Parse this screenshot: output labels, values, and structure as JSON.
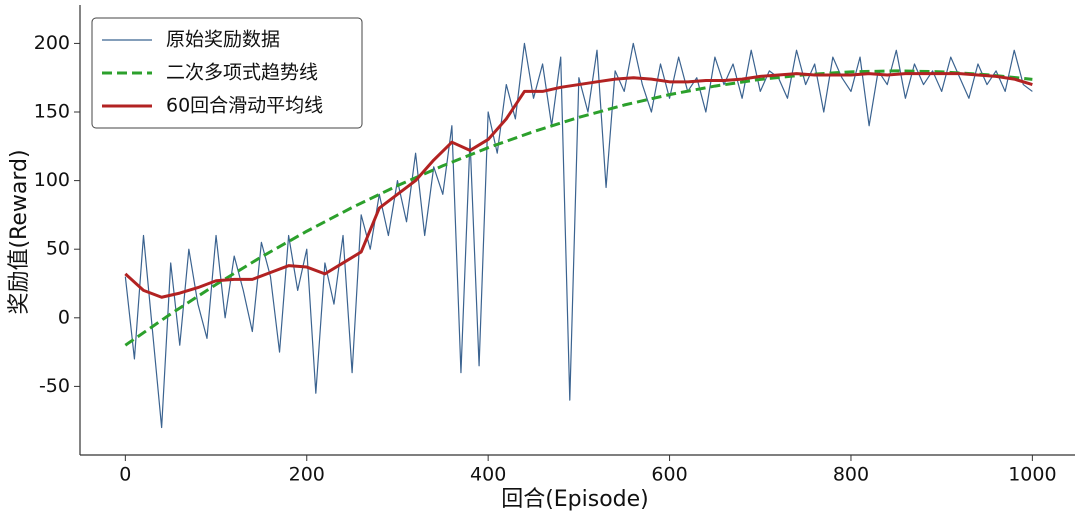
{
  "chart_data": {
    "type": "line",
    "xlabel": "回合(Episode)",
    "ylabel": "奖励值(Reward)",
    "xlim": [
      -50,
      1047
    ],
    "ylim": [
      -100,
      228
    ],
    "xticks": [
      0,
      200,
      400,
      600,
      800,
      1000
    ],
    "yticks": [
      -50,
      0,
      50,
      100,
      150,
      200
    ],
    "legend": "upper left",
    "series": [
      {
        "name": "原始奖励数据",
        "color": "#3b6390",
        "style": "solid",
        "width": 1.2,
        "x": [
          0,
          10,
          20,
          30,
          40,
          50,
          60,
          70,
          80,
          90,
          100,
          110,
          120,
          130,
          140,
          150,
          160,
          170,
          180,
          190,
          200,
          210,
          220,
          230,
          240,
          250,
          260,
          270,
          280,
          290,
          300,
          310,
          320,
          330,
          340,
          350,
          360,
          370,
          380,
          390,
          400,
          410,
          420,
          430,
          440,
          450,
          460,
          470,
          480,
          490,
          500,
          510,
          520,
          530,
          540,
          550,
          560,
          570,
          580,
          590,
          600,
          610,
          620,
          630,
          640,
          650,
          660,
          670,
          680,
          690,
          700,
          710,
          720,
          730,
          740,
          750,
          760,
          770,
          780,
          790,
          800,
          810,
          820,
          830,
          840,
          850,
          860,
          870,
          880,
          890,
          900,
          910,
          920,
          930,
          940,
          950,
          960,
          970,
          980,
          990,
          1000
        ],
        "values": [
          30,
          -30,
          60,
          -10,
          -80,
          40,
          -20,
          50,
          10,
          -15,
          60,
          0,
          45,
          20,
          -10,
          55,
          30,
          -25,
          60,
          20,
          50,
          -55,
          40,
          10,
          60,
          -40,
          75,
          50,
          90,
          60,
          100,
          70,
          120,
          60,
          110,
          90,
          140,
          -40,
          130,
          -35,
          150,
          120,
          170,
          145,
          200,
          160,
          185,
          140,
          190,
          -60,
          175,
          150,
          195,
          95,
          180,
          165,
          200,
          170,
          150,
          185,
          160,
          190,
          165,
          175,
          150,
          190,
          170,
          185,
          160,
          195,
          165,
          180,
          175,
          160,
          195,
          170,
          185,
          150,
          190,
          175,
          165,
          190,
          140,
          180,
          170,
          195,
          160,
          185,
          170,
          180,
          165,
          190,
          175,
          160,
          185,
          170,
          180,
          165,
          195,
          170,
          165
        ]
      },
      {
        "name": "二次多项式趋势线",
        "color": "#2ca02c",
        "style": "dashed",
        "width": 3,
        "x": [
          0,
          50,
          100,
          150,
          200,
          250,
          300,
          350,
          400,
          450,
          500,
          550,
          600,
          650,
          700,
          750,
          800,
          850,
          900,
          950,
          1000
        ],
        "values": [
          -20,
          2.8,
          24.3,
          44.4,
          63.1,
          80.4,
          96.3,
          110.8,
          124,
          135.7,
          146.1,
          155.1,
          162.7,
          168.9,
          173.8,
          177.2,
          179.3,
          180,
          179.3,
          177.2,
          173.8
        ]
      },
      {
        "name": "60回合滑动平均线",
        "color": "#b22222",
        "style": "solid",
        "width": 3,
        "x": [
          0,
          20,
          40,
          60,
          80,
          100,
          120,
          140,
          160,
          180,
          200,
          220,
          240,
          260,
          280,
          300,
          320,
          340,
          360,
          380,
          400,
          420,
          440,
          460,
          480,
          500,
          520,
          540,
          560,
          580,
          600,
          620,
          640,
          660,
          680,
          700,
          720,
          740,
          760,
          780,
          800,
          820,
          840,
          860,
          880,
          900,
          920,
          940,
          960,
          980,
          1000
        ],
        "values": [
          32,
          20,
          15,
          18,
          22,
          27,
          28,
          28,
          33,
          38,
          37,
          32,
          40,
          48,
          80,
          90,
          100,
          115,
          128,
          122,
          130,
          145,
          165,
          165,
          168,
          170,
          172,
          174,
          175,
          174,
          172,
          172,
          173,
          173,
          174,
          176,
          177,
          178,
          177,
          177,
          177,
          178,
          177,
          178,
          178,
          178,
          178,
          177,
          176,
          174,
          170
        ]
      }
    ]
  }
}
